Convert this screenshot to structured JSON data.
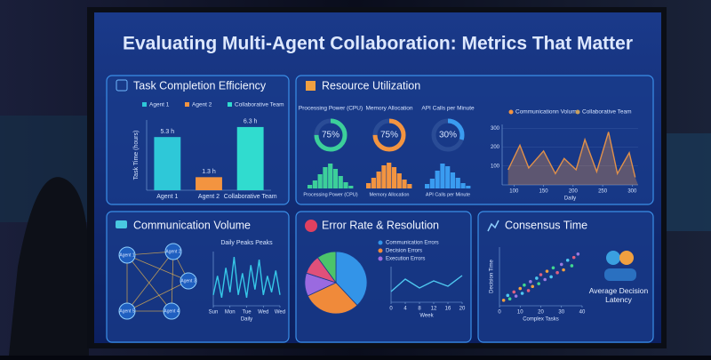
{
  "title": "Evaluating Multi-Agent Collaboration: Metrics That Matter",
  "task": {
    "title": "Task Completion Efficiency",
    "chart": {
      "type": "bar",
      "y_label": "Task Time (hours)",
      "categories": [
        "Agent 1",
        "Agent 2",
        "Collaborative Team"
      ],
      "values": [
        5.3,
        1.3,
        6.3
      ],
      "value_labels": [
        "5.3 h",
        "1.3 h",
        "6.3 h"
      ],
      "colors": [
        "#2ec8d8",
        "#f39440",
        "#30dccf"
      ],
      "ylim": [
        0,
        7
      ]
    }
  },
  "resource": {
    "title": "Resource Utilization",
    "gauges": [
      {
        "label": "Processing Power (CPU)",
        "value": 75,
        "value_label": "75%",
        "color": "#3ccf9a",
        "hist_label": "Processing Power (CPU)",
        "hist": [
          20,
          45,
          80,
          120,
          140,
          110,
          70,
          35,
          15
        ]
      },
      {
        "label": "Memory Allocation",
        "value": 75,
        "value_label": "75%",
        "color": "#f39440",
        "hist_label": "Memory Allocation",
        "hist": [
          30,
          60,
          95,
          130,
          145,
          120,
          85,
          50,
          25
        ]
      },
      {
        "label": "API Calls per Minute",
        "value": 30,
        "value_label": "30%",
        "color": "#3a9cf0",
        "hist_label": "API Calls per Minute",
        "hist": [
          25,
          55,
          100,
          140,
          125,
          90,
          60,
          30,
          15
        ]
      }
    ],
    "hist_ylim": [
      0,
      160
    ],
    "line": {
      "type": "line",
      "legend": [
        "Communicationn Volume",
        "Collaborative Team"
      ],
      "legend_colors": [
        "#f39440",
        "#c8a060"
      ],
      "x_label": "Daily",
      "x": [
        90,
        110,
        125,
        150,
        170,
        185,
        205,
        220,
        240,
        260,
        275,
        295,
        305
      ],
      "values": [
        80,
        210,
        90,
        180,
        60,
        140,
        80,
        240,
        70,
        280,
        60,
        170,
        40
      ],
      "color": "#e0904a",
      "xlim": [
        80,
        310
      ],
      "xticks": [
        100,
        150,
        200,
        250,
        300
      ],
      "ylim": [
        0,
        320
      ],
      "yticks": [
        100,
        200,
        300
      ]
    }
  },
  "comm": {
    "title": "Communication Volume",
    "nodes": [
      "Agent 1",
      "Agent 2",
      "Agent 3",
      "Agent 4",
      "Agent 5"
    ],
    "chart": {
      "type": "line",
      "title": "Daily Peaks Peaks",
      "x_label": "Daily",
      "x": [
        0,
        0.25,
        0.5,
        0.75,
        1,
        1.25,
        1.5,
        1.75,
        2,
        2.25,
        2.5,
        2.75,
        3,
        3.25,
        3.5,
        3.75,
        4
      ],
      "values": [
        20,
        55,
        15,
        70,
        25,
        90,
        20,
        60,
        15,
        75,
        30,
        85,
        20,
        55,
        25,
        65,
        20
      ],
      "color": "#36c8e8",
      "xlim": [
        0,
        4
      ],
      "ylim": [
        0,
        100
      ],
      "xticks": [
        {
          "value": 0,
          "label": "Sun"
        },
        {
          "value": 1,
          "label": "Mon"
        },
        {
          "value": 2,
          "label": "Tue"
        },
        {
          "value": 3,
          "label": "Wed"
        },
        {
          "value": 4,
          "label": "Wed"
        }
      ]
    }
  },
  "error": {
    "title": "Error Rate & Resolution",
    "pie": {
      "type": "pie",
      "categories": [
        "Communication Errors",
        "Decision Errors",
        "Execution Errors",
        null,
        null
      ],
      "values": [
        38,
        30,
        12,
        10,
        10
      ],
      "colors": [
        "#3394e8",
        "#f08a3a",
        "#9a6ae0",
        "#e0507a",
        "#4cc46a"
      ]
    },
    "line": {
      "type": "line",
      "x_label": "Week",
      "x": [
        0,
        4,
        8,
        12,
        16,
        20
      ],
      "values": [
        30,
        65,
        40,
        60,
        45,
        75
      ],
      "color": "#4fc8f0",
      "xlim": [
        0,
        20
      ],
      "xticks": [
        0,
        4,
        8,
        12,
        16,
        20
      ],
      "ylim": [
        0,
        100
      ]
    }
  },
  "consensus": {
    "title": "Consensus Time",
    "scatter": {
      "type": "scatter",
      "x_label": "Complex Tasks",
      "y_label": "Decision Time",
      "x": [
        2,
        4,
        5,
        7,
        8,
        10,
        11,
        12,
        14,
        15,
        16,
        18,
        19,
        20,
        22,
        23,
        25,
        26,
        28,
        30,
        31,
        33,
        35,
        36,
        38
      ],
      "values": [
        8,
        15,
        10,
        20,
        14,
        25,
        18,
        30,
        22,
        35,
        28,
        40,
        32,
        45,
        38,
        50,
        42,
        55,
        48,
        60,
        52,
        66,
        58,
        70,
        75
      ],
      "xlim": [
        0,
        40
      ],
      "xticks": [
        0,
        10,
        20,
        30,
        40
      ],
      "ylim": [
        0,
        85
      ]
    },
    "note": "Average Decision Latency"
  }
}
